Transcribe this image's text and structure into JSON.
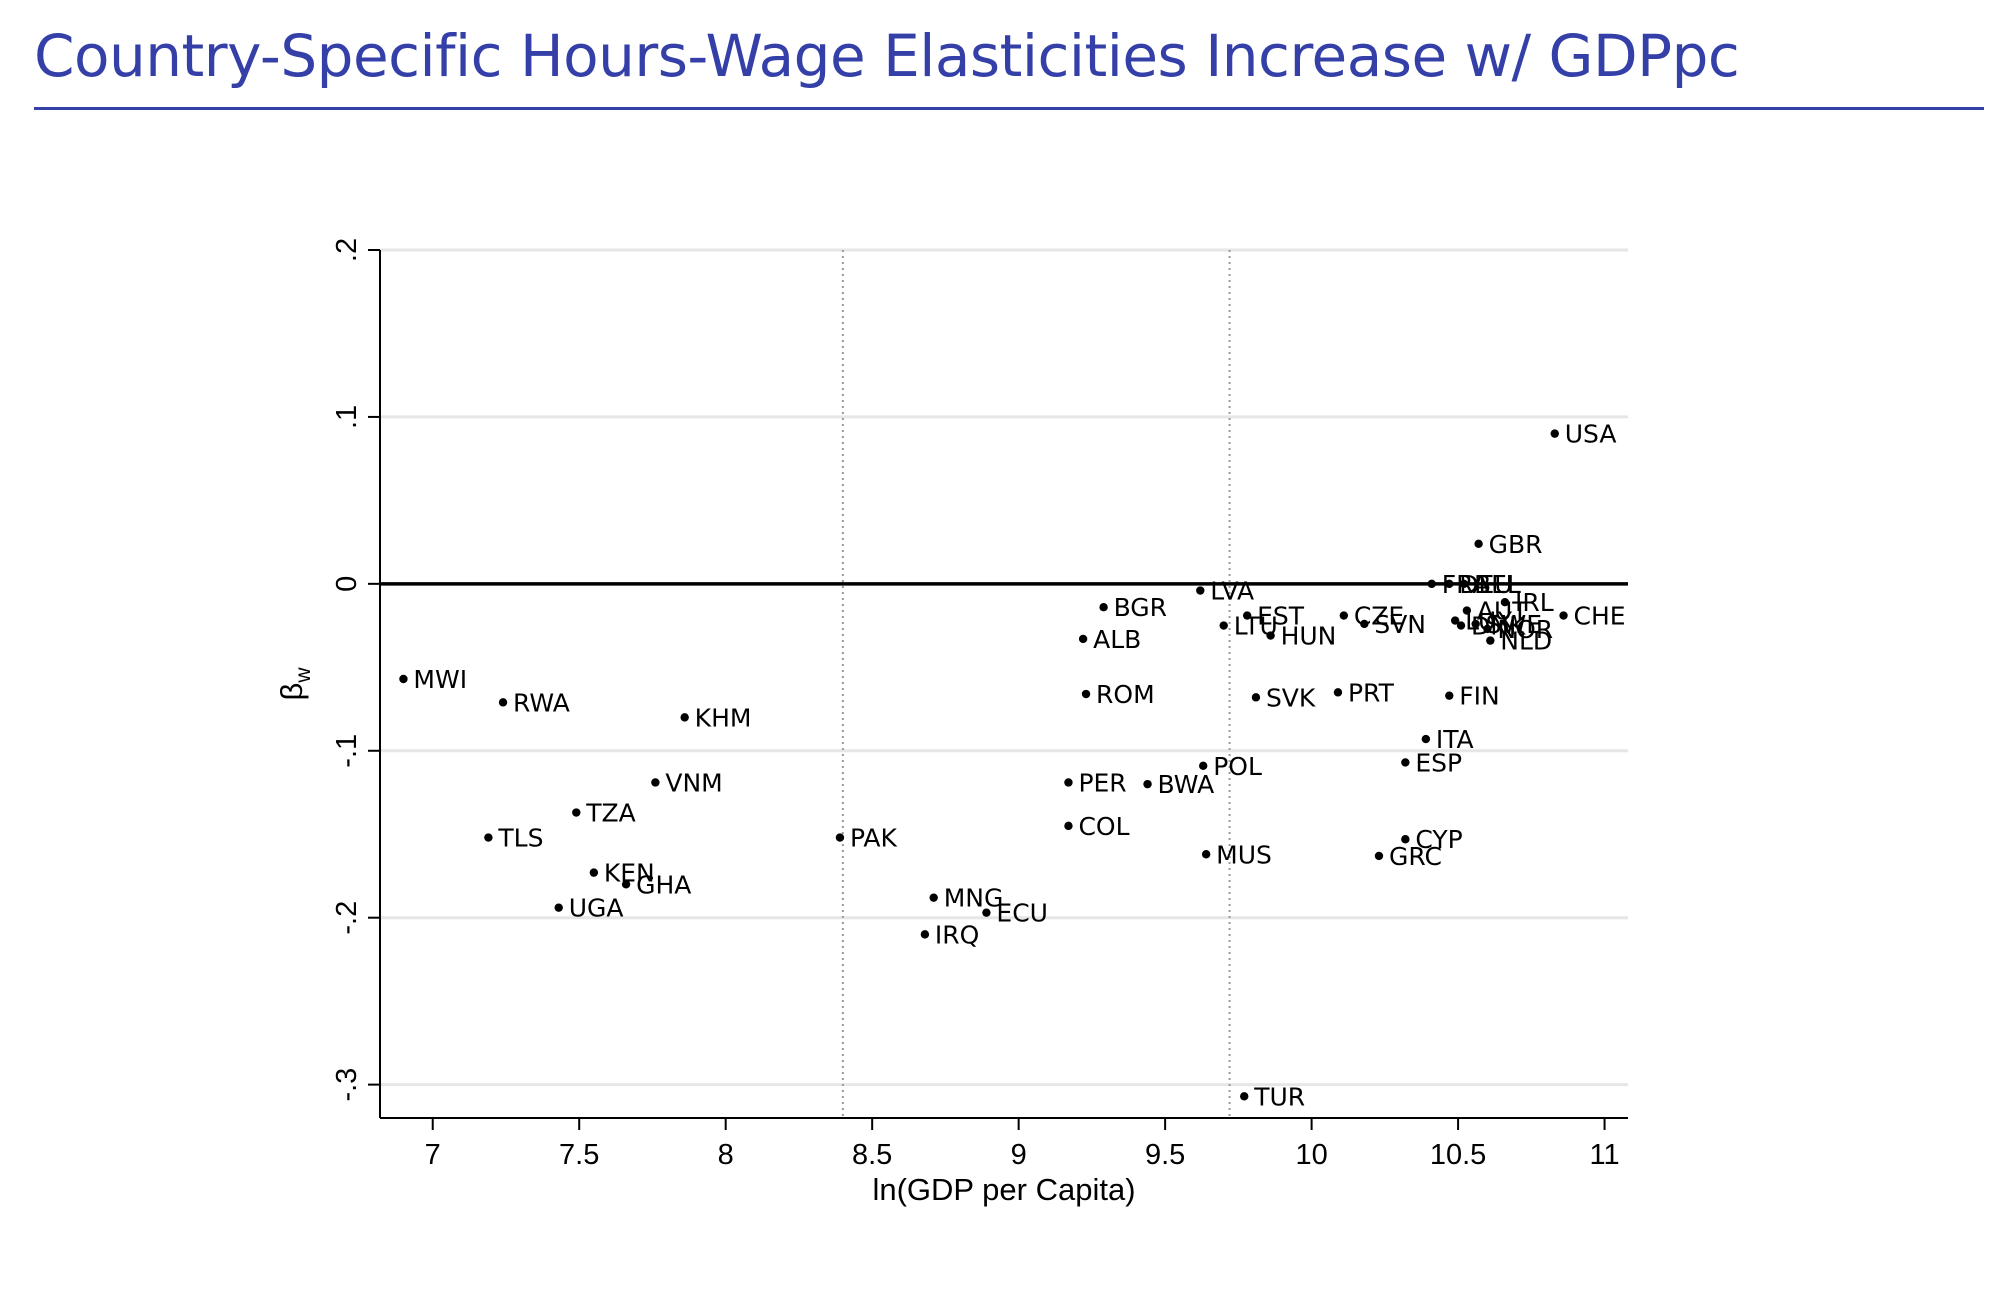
{
  "slide": {
    "title": "Country-Specific Hours-Wage Elasticities Increase w/ GDPpc"
  },
  "colors": {
    "title": "#3440A8",
    "points": "#000000",
    "grid": "#e6e6e6",
    "refline": "#000000",
    "vlines": "#9a9a9a"
  },
  "chart_data": {
    "type": "scatter",
    "title": "",
    "xlabel": "ln(GDP per Capita)",
    "ylabel": "β",
    "ylabel_sub": "w",
    "xlim": [
      6.82,
      11.08
    ],
    "ylim": [
      -0.32,
      0.2
    ],
    "xticks": [
      7,
      7.5,
      8,
      8.5,
      9,
      9.5,
      10,
      10.5,
      11
    ],
    "xtick_labels": [
      "7",
      "7.5",
      "8",
      "8.5",
      "9",
      "9.5",
      "10",
      "10.5",
      "11"
    ],
    "yticks": [
      0.2,
      0.1,
      0,
      -0.1,
      -0.2,
      -0.3
    ],
    "ytick_labels": [
      ".2",
      ".1",
      "0",
      "-.1",
      "-.2",
      "-.3"
    ],
    "grid": "horizontal",
    "hlines": [
      0
    ],
    "vlines_dotted": [
      8.4,
      9.72
    ],
    "points": [
      {
        "label": "USA",
        "x": 10.83,
        "y": 0.09
      },
      {
        "label": "GBR",
        "x": 10.57,
        "y": 0.024
      },
      {
        "label": "FRA",
        "x": 10.41,
        "y": 0.0
      },
      {
        "label": "DEU",
        "x": 10.47,
        "y": 0.0
      },
      {
        "label": "BEL",
        "x": 10.52,
        "y": 0.0
      },
      {
        "label": "IRL",
        "x": 10.66,
        "y": -0.011
      },
      {
        "label": "AUT",
        "x": 10.53,
        "y": -0.016
      },
      {
        "label": "CHE",
        "x": 10.86,
        "y": -0.019
      },
      {
        "label": "LUX",
        "x": 10.49,
        "y": -0.022
      },
      {
        "label": "DNK",
        "x": 10.51,
        "y": -0.025
      },
      {
        "label": "SWE",
        "x": 10.56,
        "y": -0.024
      },
      {
        "label": "NOR",
        "x": 10.6,
        "y": -0.027
      },
      {
        "label": "NLD",
        "x": 10.61,
        "y": -0.034
      },
      {
        "label": "LVA",
        "x": 9.62,
        "y": -0.004
      },
      {
        "label": "BGR",
        "x": 9.29,
        "y": -0.014
      },
      {
        "label": "EST",
        "x": 9.78,
        "y": -0.019
      },
      {
        "label": "CZE",
        "x": 10.11,
        "y": -0.019
      },
      {
        "label": "LTU",
        "x": 9.7,
        "y": -0.025
      },
      {
        "label": "SVN",
        "x": 10.18,
        "y": -0.024
      },
      {
        "label": "HUN",
        "x": 9.86,
        "y": -0.031
      },
      {
        "label": "ALB",
        "x": 9.22,
        "y": -0.033
      },
      {
        "label": "MWI",
        "x": 6.9,
        "y": -0.057
      },
      {
        "label": "RWA",
        "x": 7.24,
        "y": -0.071
      },
      {
        "label": "ROM",
        "x": 9.23,
        "y": -0.066
      },
      {
        "label": "SVK",
        "x": 9.81,
        "y": -0.068
      },
      {
        "label": "PRT",
        "x": 10.09,
        "y": -0.065
      },
      {
        "label": "FIN",
        "x": 10.47,
        "y": -0.067
      },
      {
        "label": "KHM",
        "x": 7.86,
        "y": -0.08
      },
      {
        "label": "ITA",
        "x": 10.39,
        "y": -0.093
      },
      {
        "label": "ESP",
        "x": 10.32,
        "y": -0.107
      },
      {
        "label": "POL",
        "x": 9.63,
        "y": -0.109
      },
      {
        "label": "VNM",
        "x": 7.76,
        "y": -0.119
      },
      {
        "label": "PER",
        "x": 9.17,
        "y": -0.119
      },
      {
        "label": "BWA",
        "x": 9.44,
        "y": -0.12
      },
      {
        "label": "TZA",
        "x": 7.49,
        "y": -0.137
      },
      {
        "label": "COL",
        "x": 9.17,
        "y": -0.145
      },
      {
        "label": "TLS",
        "x": 7.19,
        "y": -0.152
      },
      {
        "label": "PAK",
        "x": 8.39,
        "y": -0.152
      },
      {
        "label": "CYP",
        "x": 10.32,
        "y": -0.153
      },
      {
        "label": "MUS",
        "x": 9.64,
        "y": -0.162
      },
      {
        "label": "GRC",
        "x": 10.23,
        "y": -0.163
      },
      {
        "label": "KEN",
        "x": 7.55,
        "y": -0.173
      },
      {
        "label": "GHA",
        "x": 7.66,
        "y": -0.18
      },
      {
        "label": "MNG",
        "x": 8.71,
        "y": -0.188
      },
      {
        "label": "UGA",
        "x": 7.43,
        "y": -0.194
      },
      {
        "label": "ECU",
        "x": 8.89,
        "y": -0.197
      },
      {
        "label": "IRQ",
        "x": 8.68,
        "y": -0.21
      },
      {
        "label": "TUR",
        "x": 9.77,
        "y": -0.307
      }
    ]
  }
}
